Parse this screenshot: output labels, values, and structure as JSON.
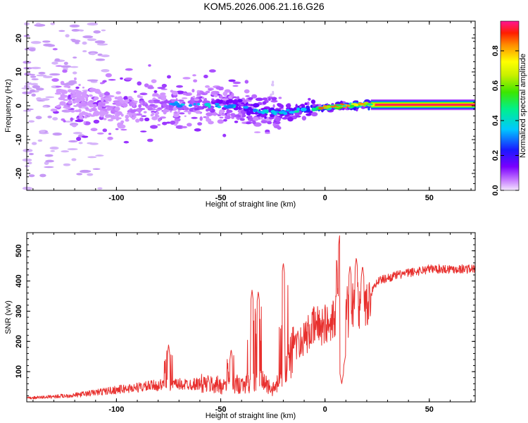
{
  "title": "KOM5.2026.006.21.16.G26",
  "colors": {
    "snr_line": "#e8302e",
    "frame": "#000000",
    "blob_outline": "#d8b4f8"
  },
  "chart_data": [
    {
      "type": "heatmap",
      "name": "spectrogram",
      "xlabel": "Height of straight line (km)",
      "ylabel": "Frequency (Hz)",
      "xlim": [
        -143,
        72
      ],
      "ylim": [
        -25,
        25
      ],
      "xticks": [
        -100,
        -50,
        0,
        50
      ],
      "yticks": [
        -20,
        -10,
        0,
        10,
        20
      ],
      "colorbar": {
        "label": "Normalized spectral amplitude",
        "range": [
          0,
          0.97
        ],
        "ticks": [
          "0.0",
          "0.2",
          "0.4",
          "0.6",
          "0.8"
        ],
        "tick_values": [
          0.0,
          0.2,
          0.4,
          0.6,
          0.8
        ],
        "colormap": "rainbow (violet to red)"
      },
      "ridge": [
        {
          "x": -143,
          "f": 10
        },
        {
          "x": -125,
          "f": 2
        },
        {
          "x": -100,
          "f": -1
        },
        {
          "x": -70,
          "f": 0.5
        },
        {
          "x": -55,
          "f": 0
        },
        {
          "x": -40,
          "f": 0
        },
        {
          "x": -30,
          "f": -2
        },
        {
          "x": -20,
          "f": -2
        },
        {
          "x": -10,
          "f": -1
        },
        {
          "x": 0,
          "f": -0.5
        },
        {
          "x": 10,
          "f": 0
        },
        {
          "x": 20,
          "f": 0.5
        },
        {
          "x": 72,
          "f": 0
        }
      ],
      "amplitude_profile": [
        {
          "x": -143,
          "a": 0.05
        },
        {
          "x": -100,
          "a": 0.12
        },
        {
          "x": -60,
          "a": 0.2
        },
        {
          "x": -40,
          "a": 0.3
        },
        {
          "x": -20,
          "a": 0.35
        },
        {
          "x": 0,
          "a": 0.55
        },
        {
          "x": 20,
          "a": 0.75
        },
        {
          "x": 30,
          "a": 0.9
        },
        {
          "x": 72,
          "a": 0.95
        }
      ]
    },
    {
      "type": "line",
      "name": "snr",
      "xlabel": "Height of straight line (km)",
      "ylabel": "SNR (v/v)",
      "xlim": [
        -143,
        72
      ],
      "ylim": [
        0,
        560
      ],
      "xticks": [
        -100,
        -50,
        0,
        50
      ],
      "yticks": [
        100,
        200,
        300,
        400,
        500
      ],
      "series": [
        {
          "name": "SNR",
          "baseline": [
            {
              "x": -143,
              "y": 12
            },
            {
              "x": -120,
              "y": 22
            },
            {
              "x": -100,
              "y": 40
            },
            {
              "x": -80,
              "y": 55
            },
            {
              "x": -60,
              "y": 60
            },
            {
              "x": -50,
              "y": 55
            },
            {
              "x": -40,
              "y": 60
            },
            {
              "x": -30,
              "y": 70
            },
            {
              "x": -25,
              "y": 40
            },
            {
              "x": -20,
              "y": 80
            },
            {
              "x": -15,
              "y": 170
            },
            {
              "x": -10,
              "y": 210
            },
            {
              "x": -5,
              "y": 250
            },
            {
              "x": 0,
              "y": 260
            },
            {
              "x": 5,
              "y": 300
            },
            {
              "x": 10,
              "y": 290
            },
            {
              "x": 15,
              "y": 310
            },
            {
              "x": 20,
              "y": 330
            },
            {
              "x": 25,
              "y": 400
            },
            {
              "x": 35,
              "y": 420
            },
            {
              "x": 50,
              "y": 440
            },
            {
              "x": 72,
              "y": 440
            }
          ],
          "peaks": [
            {
              "x": -75,
              "y": 190
            },
            {
              "x": -45,
              "y": 175
            },
            {
              "x": -35,
              "y": 370
            },
            {
              "x": -32,
              "y": 365
            },
            {
              "x": -20,
              "y": 460
            },
            {
              "x": -13,
              "y": 235
            },
            {
              "x": 7,
              "y": 550
            },
            {
              "x": 12,
              "y": 450
            },
            {
              "x": 15,
              "y": 478
            },
            {
              "x": 18,
              "y": 450
            }
          ],
          "dips": [
            {
              "x": 2,
              "y": 255
            },
            {
              "x": 8,
              "y": 60
            },
            {
              "x": 9,
              "y": 120
            }
          ]
        }
      ]
    }
  ]
}
